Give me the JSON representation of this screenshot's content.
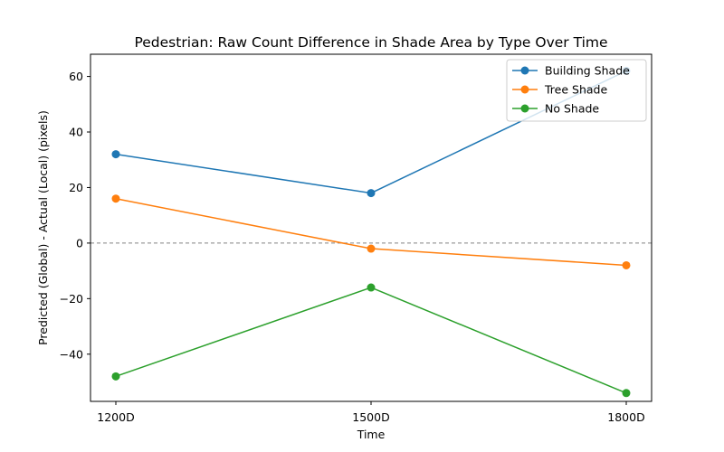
{
  "chart_data": {
    "type": "line",
    "title": "Pedestrian: Raw Count Difference in Shade Area by Type Over Time",
    "xlabel": "Time",
    "ylabel": "Predicted (Global) - Actual (Local) (pixels)",
    "categories": [
      "1200D",
      "1500D",
      "1800D"
    ],
    "ylim": [
      -57,
      68
    ],
    "yticks": [
      -40,
      -20,
      0,
      20,
      40,
      60
    ],
    "ytick_labels": [
      "−40",
      "−20",
      "0",
      "20",
      "40",
      "60"
    ],
    "reference_line": {
      "y": 0,
      "style": "dashed",
      "color": "#808080"
    },
    "grid": false,
    "legend_position": "top-right",
    "series": [
      {
        "name": "Building Shade",
        "color": "#1f77b4",
        "values": [
          32,
          18,
          62
        ]
      },
      {
        "name": "Tree Shade",
        "color": "#ff7f0e",
        "values": [
          16,
          -2,
          -8
        ]
      },
      {
        "name": "No Shade",
        "color": "#2ca02c",
        "values": [
          -48,
          -16,
          -54
        ]
      }
    ]
  }
}
